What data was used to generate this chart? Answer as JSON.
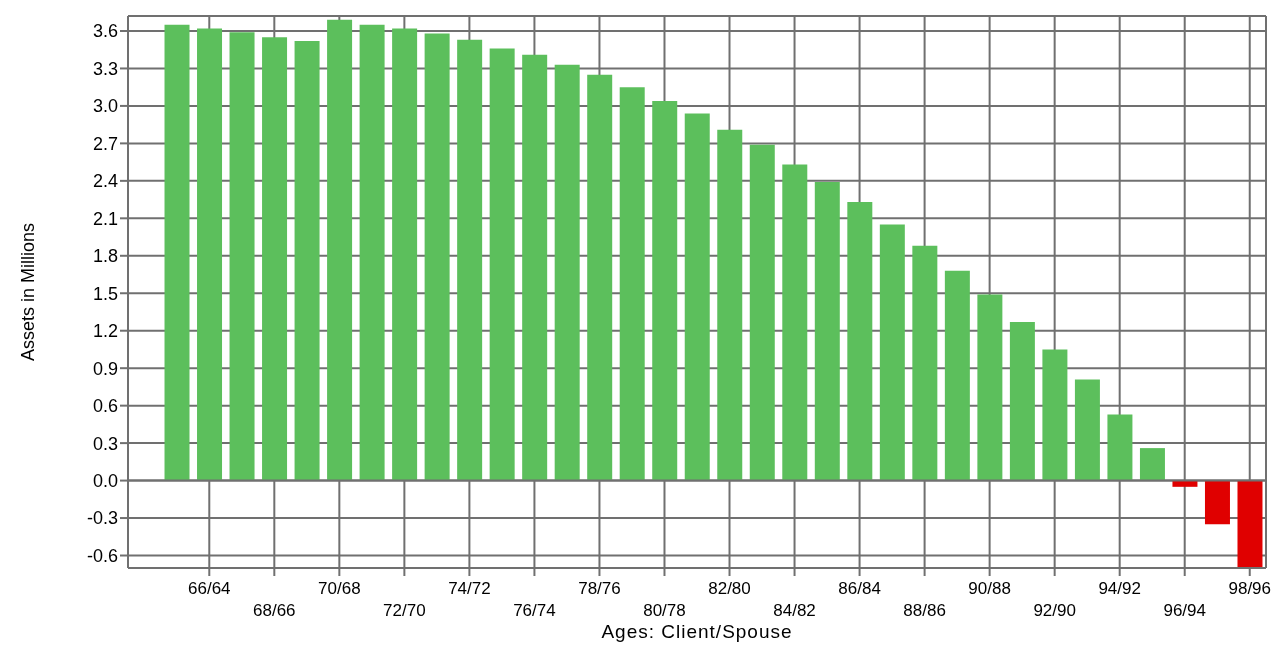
{
  "chart_data": {
    "type": "bar",
    "xlabel": "Ages: Client/Spouse",
    "ylabel": "Assets in Millions",
    "categories": [
      null,
      "66/64",
      null,
      "68/66",
      null,
      "70/68",
      null,
      "72/70",
      null,
      "74/72",
      null,
      "76/74",
      null,
      "78/76",
      null,
      "80/78",
      null,
      "82/80",
      null,
      "84/82",
      null,
      "86/84",
      null,
      "88/86",
      null,
      "90/88",
      null,
      "92/90",
      null,
      "94/92",
      null,
      "96/94",
      null,
      "98/96"
    ],
    "values": [
      3.65,
      3.62,
      3.59,
      3.55,
      3.52,
      3.69,
      3.65,
      3.62,
      3.58,
      3.53,
      3.46,
      3.41,
      3.33,
      3.25,
      3.15,
      3.04,
      2.94,
      2.81,
      2.69,
      2.53,
      2.39,
      2.23,
      2.05,
      1.88,
      1.68,
      1.49,
      1.27,
      1.05,
      0.81,
      0.53,
      0.26,
      -0.05,
      -0.35,
      -0.7
    ],
    "colors": [
      "#5cbf5c",
      "#5cbf5c",
      "#5cbf5c",
      "#5cbf5c",
      "#5cbf5c",
      "#5cbf5c",
      "#5cbf5c",
      "#5cbf5c",
      "#5cbf5c",
      "#5cbf5c",
      "#5cbf5c",
      "#5cbf5c",
      "#5cbf5c",
      "#5cbf5c",
      "#5cbf5c",
      "#5cbf5c",
      "#5cbf5c",
      "#5cbf5c",
      "#5cbf5c",
      "#5cbf5c",
      "#5cbf5c",
      "#5cbf5c",
      "#5cbf5c",
      "#5cbf5c",
      "#5cbf5c",
      "#5cbf5c",
      "#5cbf5c",
      "#5cbf5c",
      "#5cbf5c",
      "#5cbf5c",
      "#5cbf5c",
      "#e00000",
      "#e00000",
      "#e00000"
    ],
    "ylim": [
      -0.7,
      3.72
    ],
    "yticks": [
      {
        "value": -0.6,
        "label": "-0.6"
      },
      {
        "value": -0.3,
        "label": "-0.3"
      },
      {
        "value": 0,
        "label": "0.0"
      },
      {
        "value": 0.3,
        "label": "0.3"
      },
      {
        "value": 0.6,
        "label": "0.6"
      },
      {
        "value": 0.9,
        "label": "0.9"
      },
      {
        "value": 1.2,
        "label": "1.2"
      },
      {
        "value": 1.5,
        "label": "1.5"
      },
      {
        "value": 1.8,
        "label": "1.8"
      },
      {
        "value": 2.1,
        "label": "2.1"
      },
      {
        "value": 2.4,
        "label": "2.4"
      },
      {
        "value": 2.7,
        "label": "2.7"
      },
      {
        "value": 3.0,
        "label": "3.0"
      },
      {
        "value": 3.3,
        "label": "3.3"
      },
      {
        "value": 3.6,
        "label": "3.6"
      }
    ],
    "grid": true
  }
}
